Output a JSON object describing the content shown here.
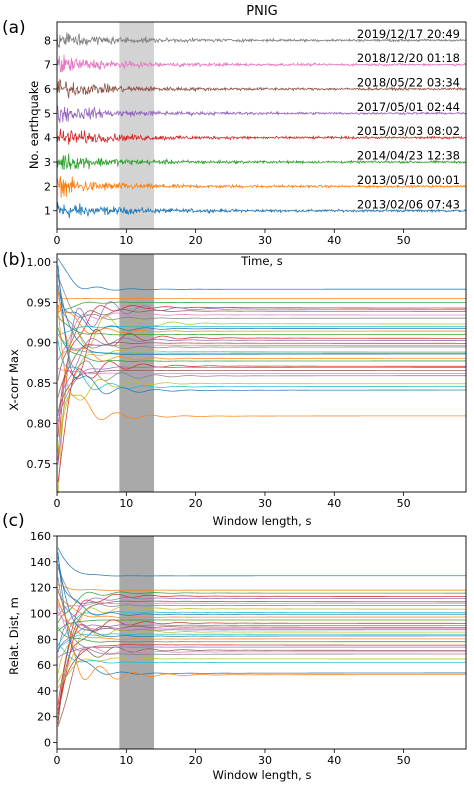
{
  "chart_data": [
    {
      "panel_label": "(a)",
      "type": "line",
      "title": "PNIG",
      "xlabel": "Time, s",
      "ylabel": "No. earthquake",
      "xlim": [
        0,
        59
      ],
      "ylim": [
        0.25,
        8.75
      ],
      "xticks": [
        0,
        10,
        20,
        30,
        40,
        50
      ],
      "yticks": [
        1,
        2,
        3,
        4,
        5,
        6,
        7,
        8
      ],
      "highlight_window": [
        9,
        14
      ],
      "highlight_color": "#d3d3d3",
      "grid": false,
      "series": [
        {
          "index": 1,
          "label": "2013/02/06 07:43",
          "color": "#1f77b4"
        },
        {
          "index": 2,
          "label": "2013/05/10 00:01",
          "color": "#ff7f0e"
        },
        {
          "index": 3,
          "label": "2014/04/23 12:38",
          "color": "#2ca02c"
        },
        {
          "index": 4,
          "label": "2015/03/03 08:02",
          "color": "#d62728"
        },
        {
          "index": 5,
          "label": "2017/05/01 02:44",
          "color": "#9467bd"
        },
        {
          "index": 6,
          "label": "2018/05/22 03:34",
          "color": "#8c564b"
        },
        {
          "index": 7,
          "label": "2018/12/20 01:18",
          "color": "#e377c2"
        },
        {
          "index": 8,
          "label": "2019/12/17 20:49",
          "color": "#7f7f7f"
        }
      ]
    },
    {
      "panel_label": "(b)",
      "type": "line",
      "title": "",
      "xlabel": "Window length, s",
      "ylabel": "X-corr Max",
      "xlim": [
        0,
        59
      ],
      "ylim": [
        0.715,
        1.01
      ],
      "xticks": [
        0,
        10,
        20,
        30,
        40,
        50
      ],
      "yticks": [
        0.75,
        0.8,
        0.85,
        0.9,
        0.95,
        1.0
      ],
      "ytick_labels": [
        "0.75",
        "0.80",
        "0.85",
        "0.90",
        "0.95",
        "1.00"
      ],
      "highlight_window": [
        9,
        14
      ],
      "highlight_color": "#a9a9a9",
      "grid": false,
      "series_final_values": [
        0.966,
        0.955,
        0.95,
        0.945,
        0.943,
        0.94,
        0.935,
        0.93,
        0.925,
        0.92,
        0.917,
        0.914,
        0.91,
        0.907,
        0.904,
        0.9,
        0.897,
        0.894,
        0.89,
        0.887,
        0.885,
        0.88,
        0.877,
        0.872,
        0.87,
        0.866,
        0.862,
        0.858,
        0.85,
        0.845,
        0.84,
        0.808
      ]
    },
    {
      "panel_label": "(c)",
      "type": "line",
      "title": "",
      "xlabel": "Window length, s",
      "ylabel": "Relat. Dist, m",
      "xlim": [
        0,
        59
      ],
      "ylim": [
        -5,
        160
      ],
      "xticks": [
        0,
        10,
        20,
        30,
        40,
        50
      ],
      "yticks": [
        0,
        20,
        40,
        60,
        80,
        100,
        120,
        140,
        160
      ],
      "highlight_window": [
        9,
        14
      ],
      "highlight_color": "#a9a9a9",
      "grid": false,
      "series_final_values": [
        129,
        118,
        116,
        114,
        112,
        110,
        108,
        106,
        104,
        101,
        99,
        97,
        95,
        93,
        91,
        90,
        88,
        87,
        86,
        84,
        82,
        80,
        78,
        76,
        74,
        72,
        70,
        68,
        65,
        62,
        53,
        52
      ]
    }
  ],
  "colors": {
    "cycle": [
      "#1f77b4",
      "#ff7f0e",
      "#2ca02c",
      "#d62728",
      "#9467bd",
      "#8c564b",
      "#e377c2",
      "#7f7f7f",
      "#bcbd22",
      "#17becf"
    ]
  }
}
